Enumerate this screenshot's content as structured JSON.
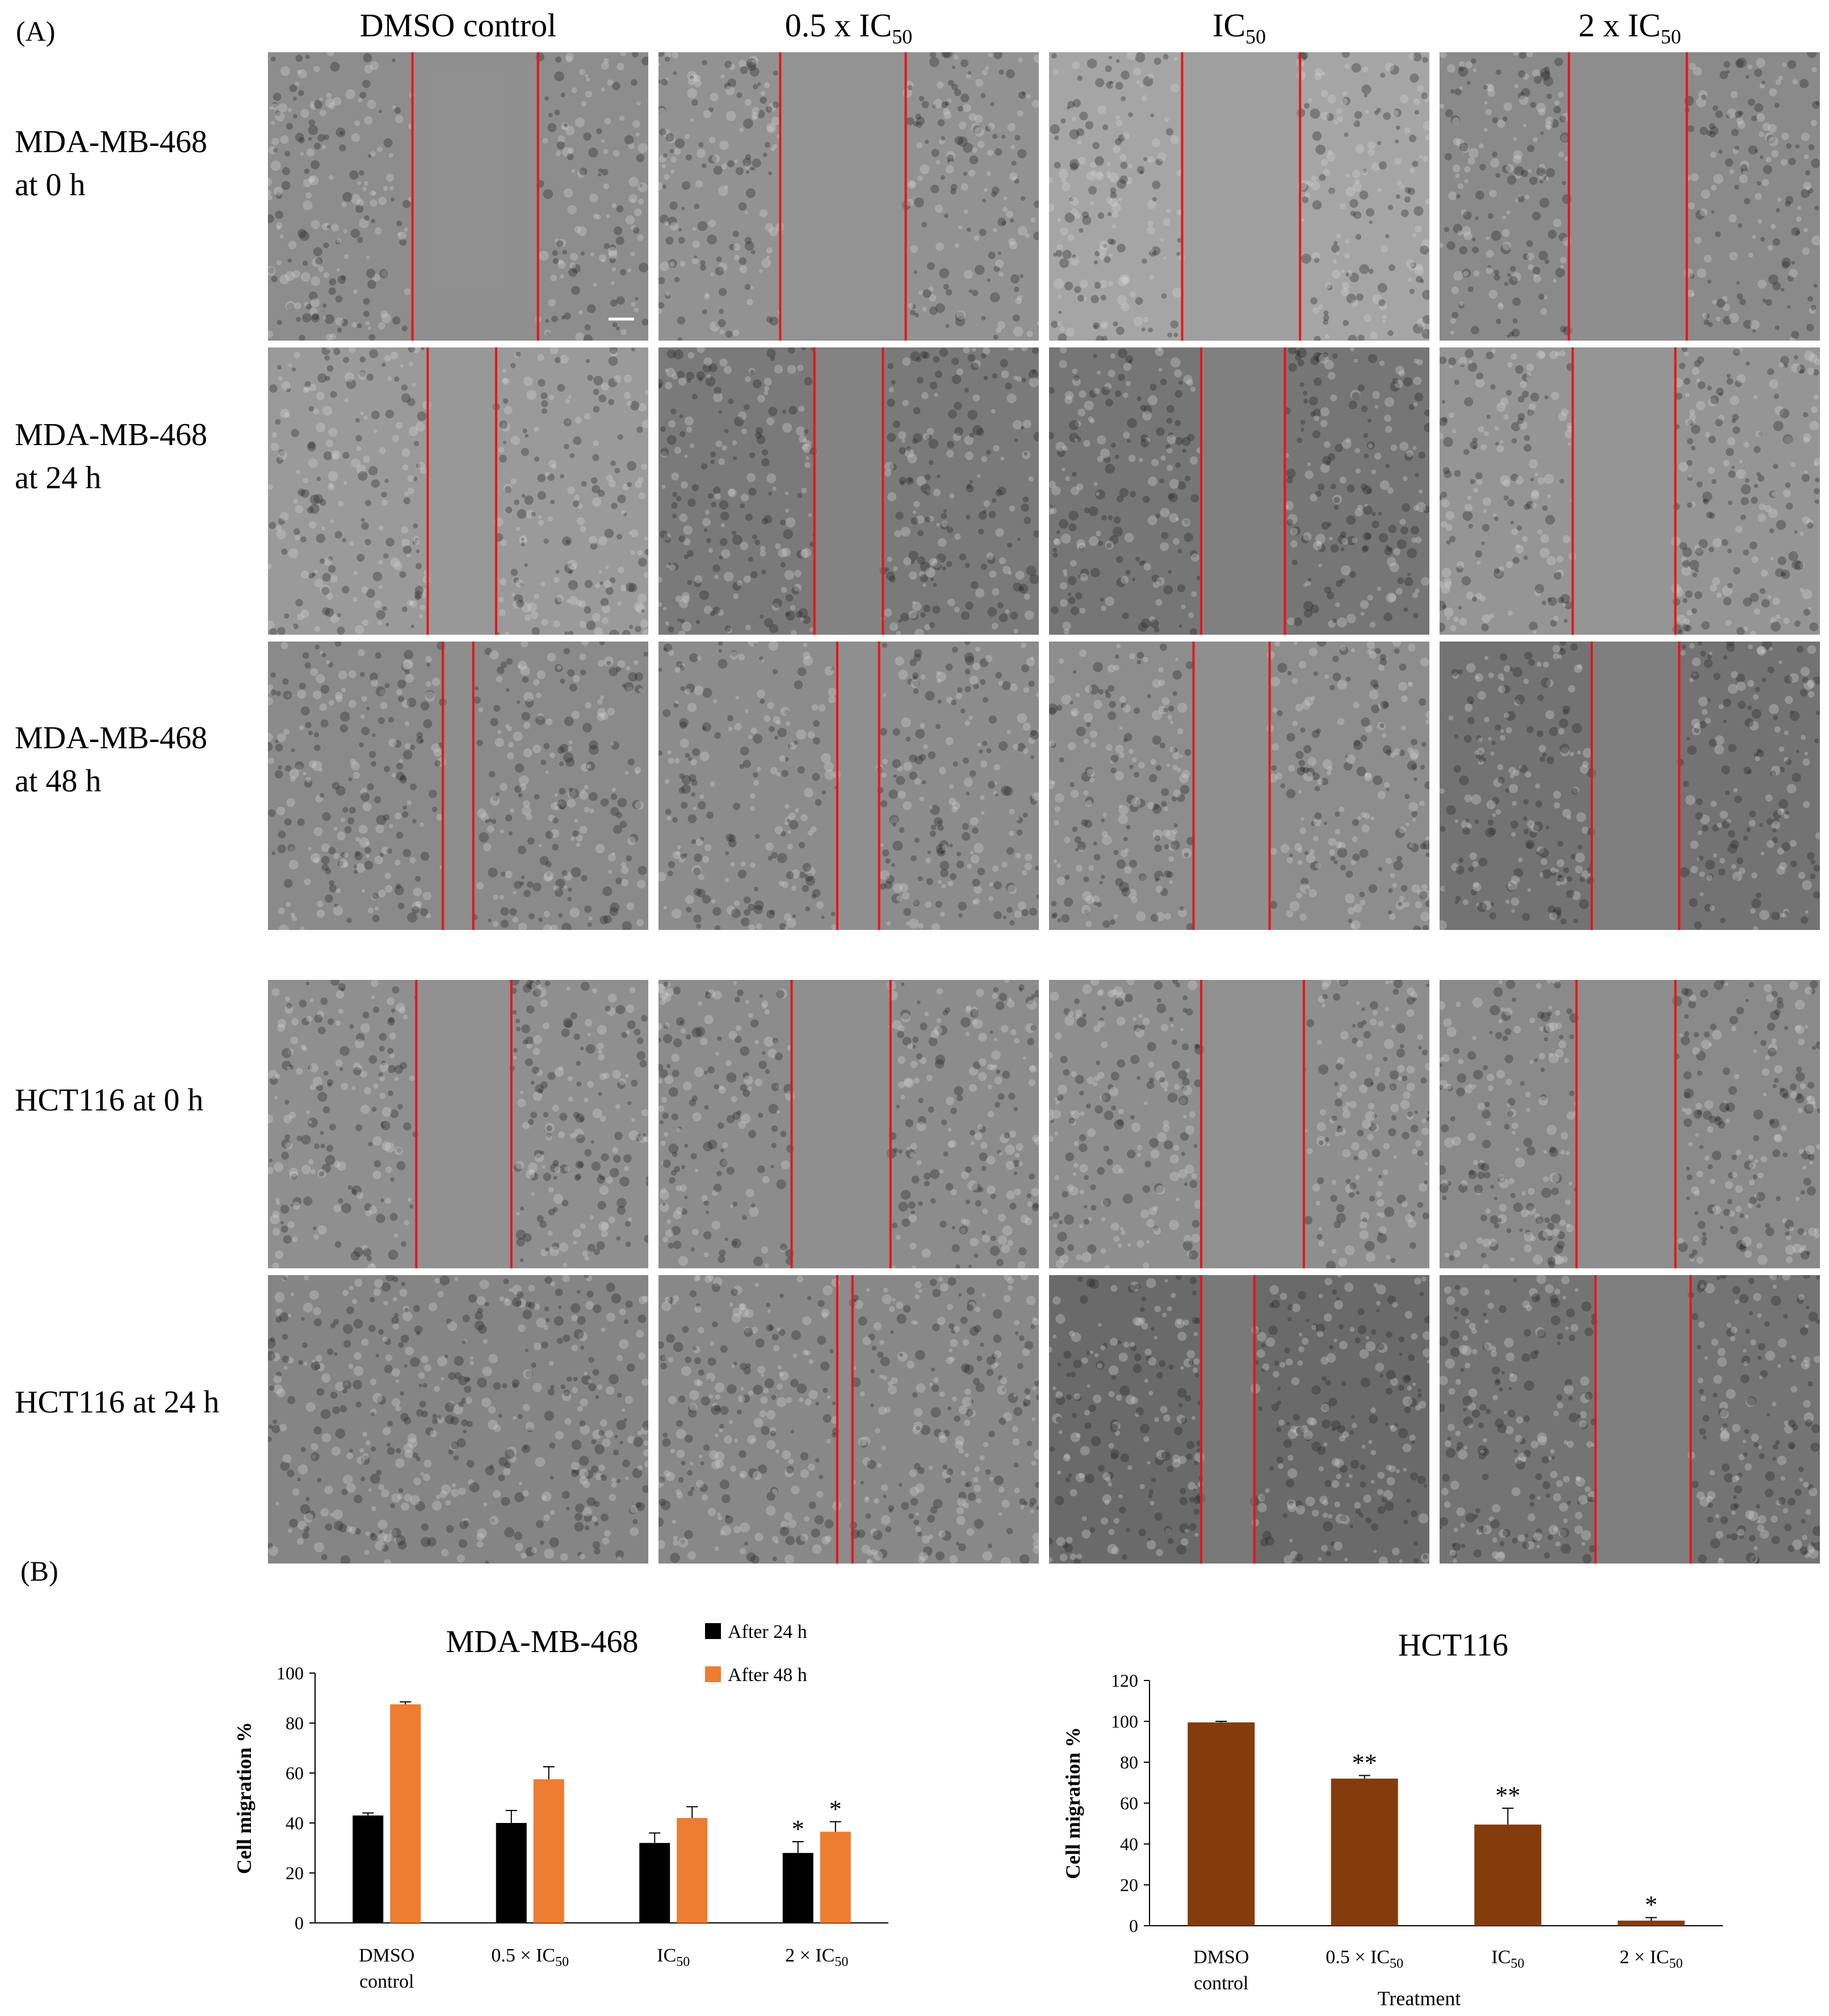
{
  "panel_a": {
    "letter": "(A)",
    "columns": [
      {
        "name": "DMSO control",
        "sub": ""
      },
      {
        "name": "0.5 x IC",
        "sub": "50"
      },
      {
        "name": "IC",
        "sub": "50"
      },
      {
        "name": "2 x IC",
        "sub": "50"
      }
    ],
    "rows": [
      {
        "line1": "MDA-MB-468",
        "line2": "at 0 h"
      },
      {
        "line1": "MDA-MB-468",
        "line2": "at 24 h"
      },
      {
        "line1": "MDA-MB-468",
        "line2": "at 48 h"
      },
      {
        "line1": "HCT116 at 0 h",
        "line2": ""
      },
      {
        "line1": "HCT116 at 24 h",
        "line2": ""
      }
    ]
  },
  "panel_b": {
    "letter": "(B)"
  },
  "colors": {
    "black_series": "#000000",
    "orange_series": "#ED7D31",
    "brown_series": "#843C0C",
    "wound_line": "#e8141b",
    "micrograph_bg": "#8a8a8a"
  },
  "chart_data": [
    {
      "type": "bar",
      "title": "MDA-MB-468",
      "ylabel": "Cell migration %",
      "xlabel": "",
      "ylim": [
        0,
        100
      ],
      "yticks": [
        0,
        20,
        40,
        60,
        80,
        100
      ],
      "categories": [
        {
          "main": "DMSO",
          "line2": "control",
          "sub": ""
        },
        {
          "main": "0.5 × IC",
          "line2": "",
          "sub": "50"
        },
        {
          "main": "IC",
          "line2": "",
          "sub": "50"
        },
        {
          "main": "2 × IC",
          "line2": "",
          "sub": "50"
        }
      ],
      "series": [
        {
          "name": "After 24 h",
          "color": "#000000",
          "values": [
            43,
            40,
            32,
            28
          ],
          "errors": [
            1,
            5,
            4,
            4.5
          ],
          "annotations": [
            "",
            "",
            "",
            "*"
          ]
        },
        {
          "name": "After 48 h",
          "color": "#ED7D31",
          "values": [
            87.5,
            57.5,
            42,
            36.5
          ],
          "errors": [
            1,
            5,
            4.5,
            4
          ],
          "annotations": [
            "",
            "",
            "",
            "*"
          ]
        }
      ],
      "legend_position": "top-right",
      "grid": false
    },
    {
      "type": "bar",
      "title": "HCT116",
      "ylabel": "Cell migration %",
      "xlabel": "Treatment",
      "ylim": [
        0,
        120
      ],
      "yticks": [
        0,
        20,
        40,
        60,
        80,
        100,
        120
      ],
      "categories": [
        {
          "main": "DMSO",
          "line2": "control",
          "sub": ""
        },
        {
          "main": "0.5 × IC",
          "line2": "",
          "sub": "50"
        },
        {
          "main": "IC",
          "line2": "",
          "sub": "50"
        },
        {
          "main": "2 × IC",
          "line2": "",
          "sub": "50"
        }
      ],
      "series": [
        {
          "name": "",
          "color": "#843C0C",
          "values": [
            99.5,
            72,
            49.5,
            2.5
          ],
          "errors": [
            0.5,
            1.5,
            8,
            1.5
          ],
          "annotations": [
            "",
            "**",
            "**",
            "*"
          ]
        }
      ],
      "grid": false
    }
  ]
}
